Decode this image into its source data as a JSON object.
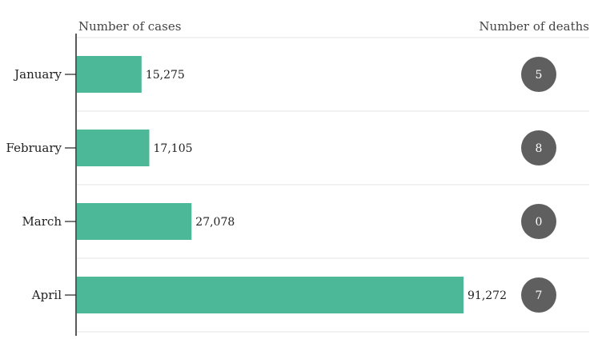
{
  "chart_data": {
    "type": "bar",
    "orientation": "horizontal",
    "categories": [
      "January",
      "February",
      "March",
      "April"
    ],
    "series": [
      {
        "name": "Number of cases",
        "values": [
          15275,
          17105,
          27078,
          91272
        ],
        "labels": [
          "15,275",
          "17,105",
          "27,078",
          "91,272"
        ]
      },
      {
        "name": "Number of deaths",
        "values": [
          5,
          8,
          0,
          7
        ],
        "labels": [
          "5",
          "8",
          "0",
          "7"
        ]
      }
    ],
    "left_header": "Number of cases",
    "right_header": "Number of deaths",
    "xlim": [
      0,
      100000
    ],
    "grid": true
  },
  "colors": {
    "bar": "#4db897",
    "bubble": "#5f5f5f",
    "bubble_text": "#ffffff",
    "grid": "#e3e3e3",
    "axis": "#222222"
  }
}
